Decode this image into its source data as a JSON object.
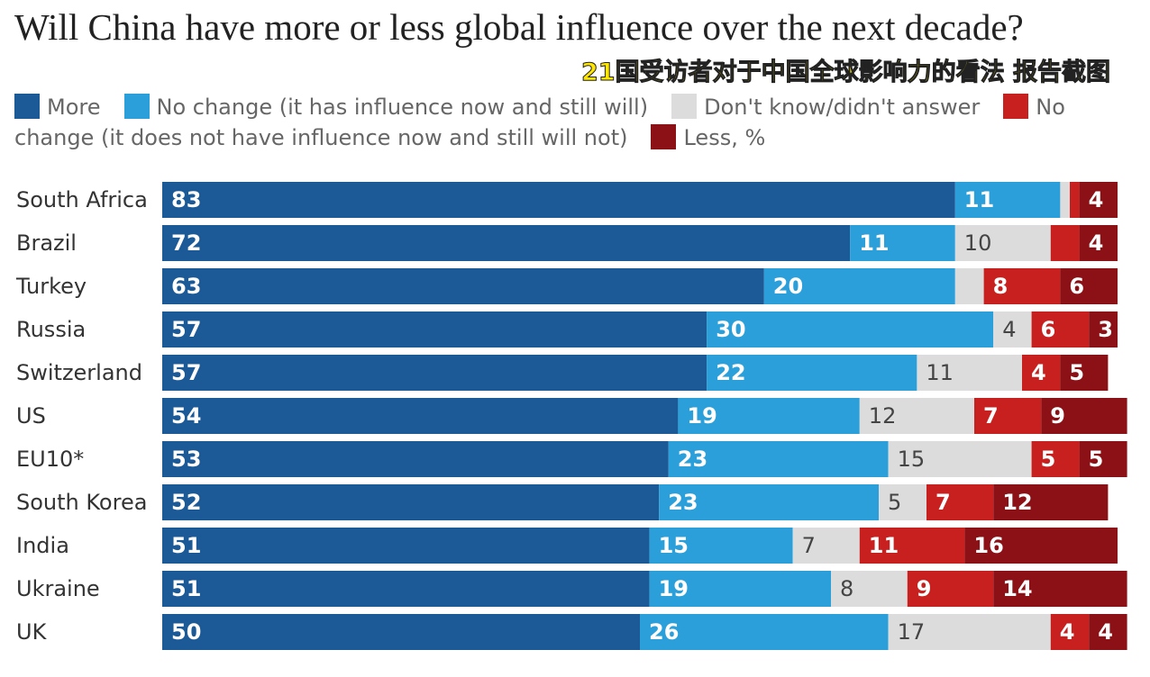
{
  "chart_data": {
    "type": "stacked-bar-horizontal",
    "title": "Will China have more or less global influence over the next decade?",
    "annotation": "21国受访者对于中国全球影响力的看法 报告截图",
    "categories": [
      "South Africa",
      "Brazil",
      "Turkey",
      "Russia",
      "Switzerland",
      "US",
      "EU10*",
      "South Korea",
      "India",
      "Ukraine",
      "UK"
    ],
    "xlim": [
      0,
      100
    ],
    "series": [
      {
        "name": "More",
        "color": "#1b5a97",
        "values": [
          83,
          72,
          63,
          57,
          57,
          54,
          53,
          52,
          51,
          51,
          50
        ]
      },
      {
        "name": "No change (it has influence now and still will)",
        "color": "#2b9fd9",
        "values": [
          11,
          11,
          20,
          30,
          22,
          19,
          23,
          23,
          15,
          19,
          26
        ]
      },
      {
        "name": "Don't know/didn't answer",
        "color": "#dcdcdc",
        "values": [
          1,
          10,
          3,
          4,
          11,
          12,
          15,
          5,
          7,
          8,
          17
        ],
        "value_labels": [
          null,
          "10",
          null,
          "4",
          "11",
          "12",
          "15",
          "5",
          "7",
          "8",
          "17"
        ]
      },
      {
        "name": "No change (it does not have influence now and still will not)",
        "color": "#c8201f",
        "values": [
          1,
          3,
          8,
          6,
          4,
          7,
          5,
          7,
          11,
          9,
          4
        ],
        "value_labels": [
          null,
          null,
          "8",
          "6",
          "4",
          "7",
          "5",
          "7",
          "11",
          "9",
          "4"
        ]
      },
      {
        "name": "Less, %",
        "color": "#8c1116",
        "values": [
          4,
          4,
          6,
          3,
          5,
          9,
          5,
          12,
          16,
          14,
          4
        ]
      }
    ]
  }
}
